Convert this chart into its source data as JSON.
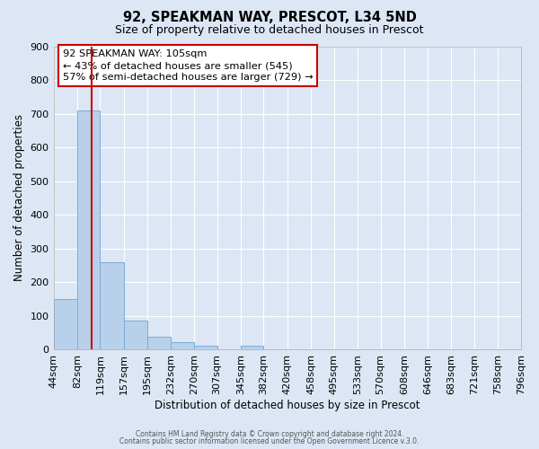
{
  "title1": "92, SPEAKMAN WAY, PRESCOT, L34 5ND",
  "title2": "Size of property relative to detached houses in Prescot",
  "xlabel": "Distribution of detached houses by size in Prescot",
  "ylabel": "Number of detached properties",
  "bar_color": "#b8d0ea",
  "bar_edge_color": "#7aadd4",
  "background_color": "#dce6f5",
  "grid_color": "#ffffff",
  "bin_edges": [
    44,
    82,
    119,
    157,
    195,
    232,
    270,
    307,
    345,
    382,
    420,
    458,
    495,
    533,
    570,
    608,
    646,
    683,
    721,
    758,
    796
  ],
  "bin_labels": [
    "44sqm",
    "82sqm",
    "119sqm",
    "157sqm",
    "195sqm",
    "232sqm",
    "270sqm",
    "307sqm",
    "345sqm",
    "382sqm",
    "420sqm",
    "458sqm",
    "495sqm",
    "533sqm",
    "570sqm",
    "608sqm",
    "646sqm",
    "683sqm",
    "721sqm",
    "758sqm",
    "796sqm"
  ],
  "bar_heights": [
    150,
    710,
    260,
    85,
    37,
    22,
    12,
    0,
    10,
    0,
    0,
    0,
    0,
    0,
    0,
    0,
    0,
    0,
    0,
    0
  ],
  "ylim": [
    0,
    900
  ],
  "yticks": [
    0,
    100,
    200,
    300,
    400,
    500,
    600,
    700,
    800,
    900
  ],
  "vline_x": 105,
  "vline_color": "#cc0000",
  "annotation_line1": "92 SPEAKMAN WAY: 105sqm",
  "annotation_line2": "← 43% of detached houses are smaller (545)",
  "annotation_line3": "57% of semi-detached houses are larger (729) →",
  "annotation_box_color": "#ffffff",
  "annotation_box_edge": "#cc0000",
  "footer1": "Contains HM Land Registry data © Crown copyright and database right 2024.",
  "footer2": "Contains public sector information licensed under the Open Government Licence v.3.0."
}
